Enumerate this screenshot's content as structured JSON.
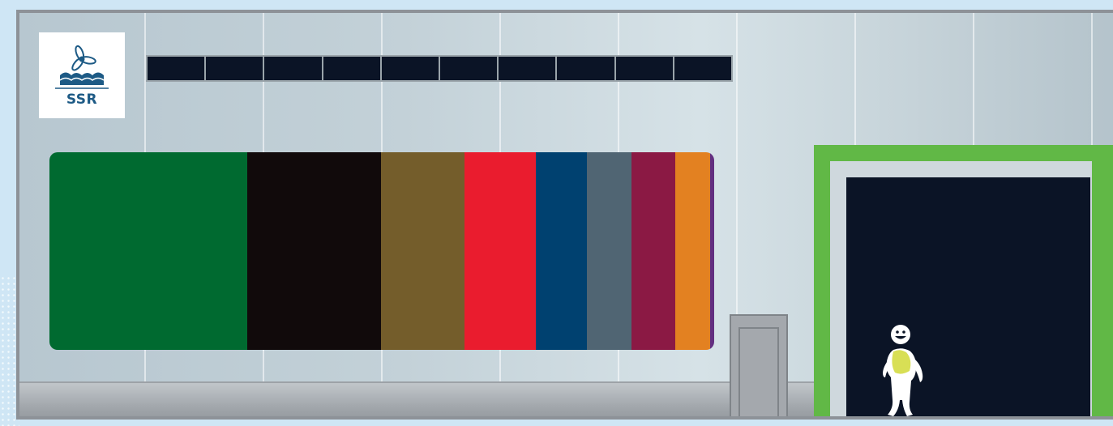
{
  "logo": {
    "text": "SSR",
    "icon": "propeller-waves-icon",
    "color": "#1d5a85"
  },
  "windows": {
    "count": 10,
    "color": "#0b1426"
  },
  "banner": {
    "stripes": [
      {
        "color": "#006a30",
        "share": 0.297
      },
      {
        "color": "#110a0b",
        "share": 0.202
      },
      {
        "color": "#745d2b",
        "share": 0.126
      },
      {
        "color": "#ea1c2e",
        "share": 0.107
      },
      {
        "color": "#004170",
        "share": 0.076
      },
      {
        "color": "#506573",
        "share": 0.068
      },
      {
        "color": "#8b1944",
        "share": 0.065
      },
      {
        "color": "#e38121",
        "share": 0.053
      },
      {
        "color": "#632f80",
        "share": 0.006
      }
    ]
  },
  "frame": {
    "color": "#61b846"
  },
  "mascot": {
    "icon": "smiling-figure-icon",
    "accent": "#d8df55"
  }
}
